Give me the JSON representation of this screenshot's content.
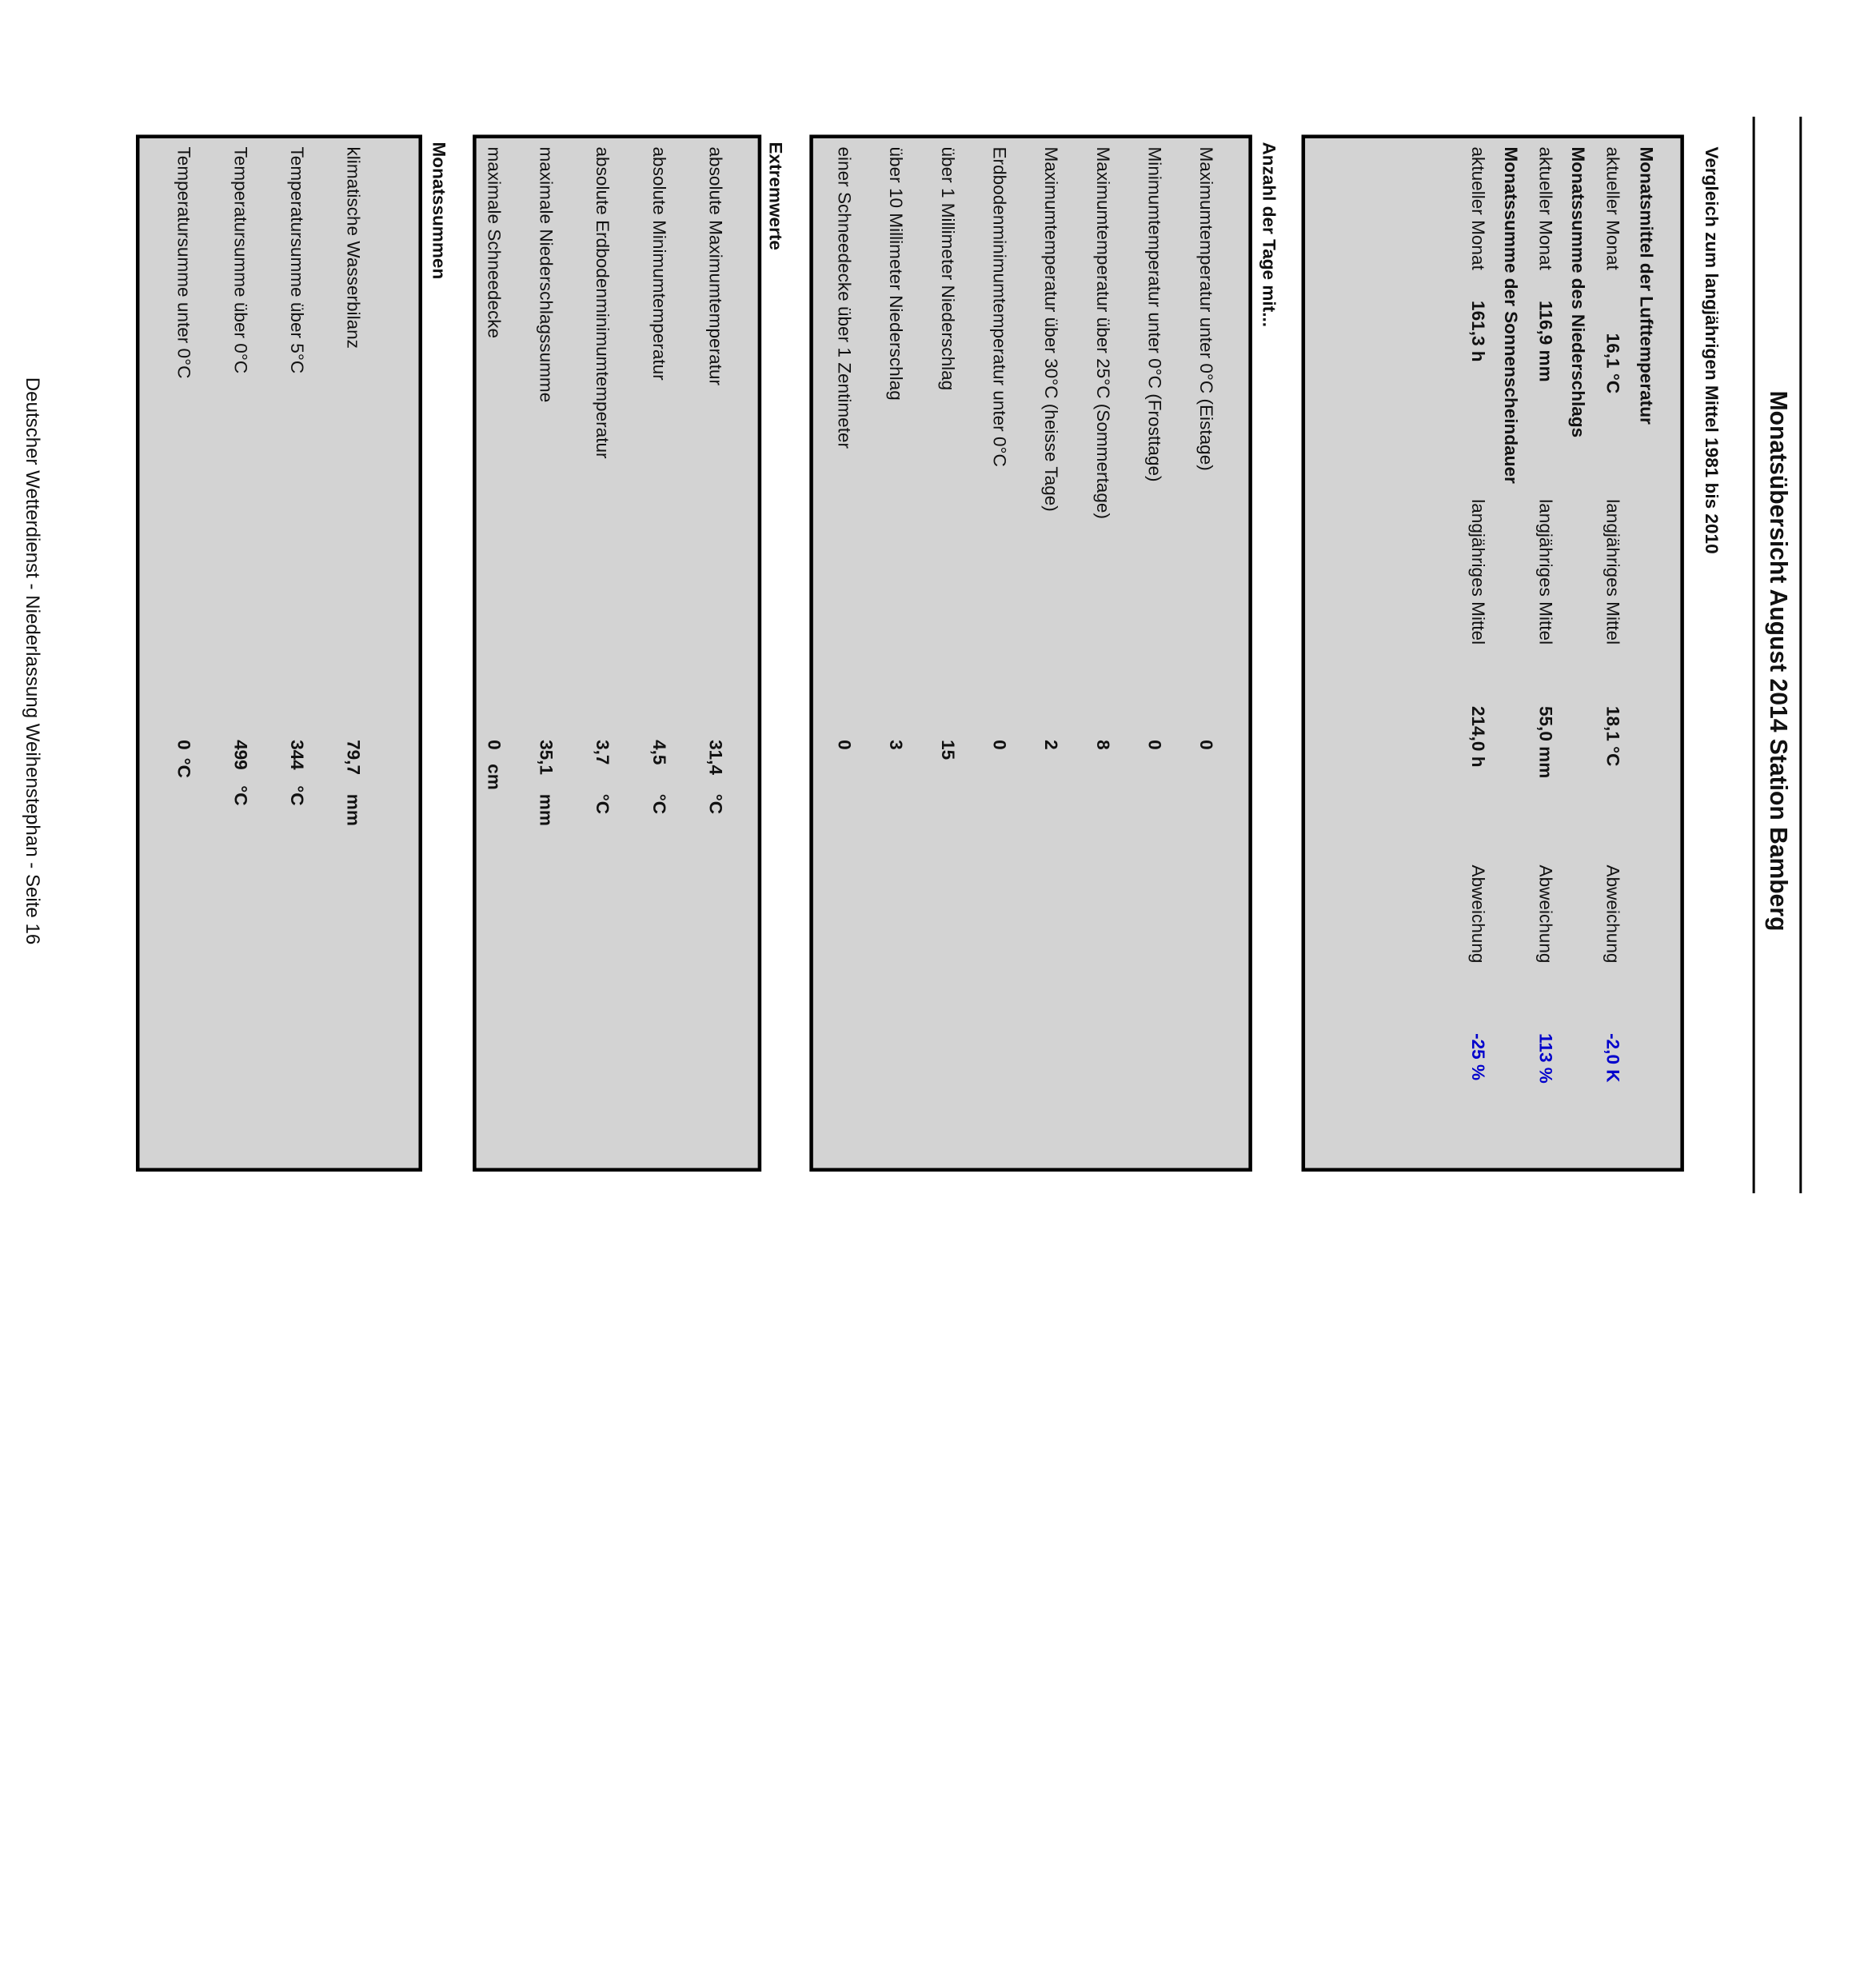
{
  "title": "Monatsübersicht August 2014 Station Bamberg",
  "vergleich": {
    "heading": "Vergleich zum langjährigen Mittel 1981 bis 2010",
    "temp": {
      "label": "Monatsmittel der Lufttemperatur",
      "current_label": "aktueller Monat",
      "current": "16,1 °C",
      "mean_label": "langjähriges Mittel",
      "mean": "18,1 °C",
      "dev_label": "Abweichung",
      "dev": "-2,0 K"
    },
    "precip": {
      "label": "Monatssumme des Niederschlags",
      "current_label": "aktueller Monat",
      "current": "116,9 mm",
      "mean_label": "langjähriges Mittel",
      "mean": "55,0 mm",
      "dev_label": "Abweichung",
      "dev": "113 %"
    },
    "sun": {
      "label": "Monatssumme der Sonnenscheindauer",
      "current_label": "aktueller Monat",
      "current": "161,3 h",
      "mean_label": "langjähriges Mittel",
      "mean": "214,0 h",
      "dev_label": "Abweichung",
      "dev": "-25 %"
    },
    "colors": {
      "deviation": "#0000cc",
      "box": "#d3d3d3"
    }
  },
  "tage": {
    "heading": "Anzahl der Tage mit...",
    "rows": [
      {
        "label": "Maximumtemperatur unter 0°C (Eistage)",
        "value": "0"
      },
      {
        "label": "Minimumtemperatur unter 0°C (Frosttage)",
        "value": "0"
      },
      {
        "label": "Maximumtemperatur über 25°C (Sommertage)",
        "value": "8"
      },
      {
        "label": "Maximumtemperatur über 30°C (heisse Tage)",
        "value": "2"
      },
      {
        "label": "Erdbodenminimumtemperatur unter 0°C",
        "value": "0"
      },
      {
        "label": "über 1 Millimeter Niederschlag",
        "value": "15"
      },
      {
        "label": "über 10 Millimeter Niederschlag",
        "value": "3"
      },
      {
        "label": "einer Schneedecke über 1 Zentimeter",
        "value": "0"
      }
    ]
  },
  "extremwerte": {
    "heading": "Extremwerte",
    "rows": [
      {
        "label": "absolute Maximumtemperatur",
        "value": "31,4",
        "unit": "°C"
      },
      {
        "label": "absolute Minimumtemperatur",
        "value": "4,5",
        "unit": "°C"
      },
      {
        "label": "absolute Erdbodenminimumtemperatur",
        "value": "3,7",
        "unit": "°C"
      },
      {
        "label": "maximale Niederschlagssumme",
        "value": "35,1",
        "unit": "mm"
      },
      {
        "label": "maximale Schneedecke",
        "value": "0",
        "unit": "cm"
      }
    ]
  },
  "monatssummen": {
    "heading": "Monatssummen",
    "rows": [
      {
        "label": "klimatische Wasserbilanz",
        "value": "79,7",
        "unit": "mm"
      },
      {
        "label": "Temperatursumme über 5°C",
        "value": "344",
        "unit": "°C"
      },
      {
        "label": "Temperatursumme über 0°C",
        "value": "499",
        "unit": "°C"
      },
      {
        "label": "Temperatursumme unter 0°C",
        "value": "0",
        "unit": "°C"
      }
    ]
  },
  "footer": "Deutscher Wetterdienst - Niederlassung Weihenstephan - Seite 16"
}
